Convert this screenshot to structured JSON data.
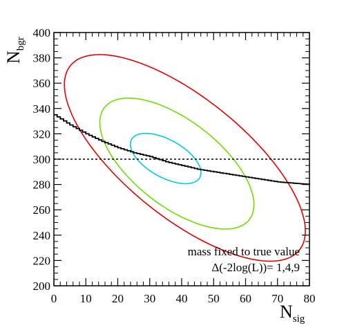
{
  "chart_data": {
    "type": "line",
    "xlabel": {
      "main": "N",
      "sub": "sig"
    },
    "ylabel": {
      "main": "N",
      "sub": "bgr"
    },
    "xlim": [
      0,
      80
    ],
    "ylim": [
      200,
      400
    ],
    "x_ticks": [
      0,
      10,
      20,
      30,
      40,
      50,
      60,
      70,
      80
    ],
    "y_ticks": [
      200,
      220,
      240,
      260,
      280,
      300,
      320,
      340,
      360,
      380,
      400
    ],
    "x_tick_labels": [
      "0",
      "10",
      "20",
      "30",
      "40",
      "50",
      "60",
      "70",
      "80"
    ],
    "y_tick_labels": [
      "200",
      "220",
      "240",
      "260",
      "280",
      "300",
      "320",
      "340",
      "360",
      "380",
      "400"
    ],
    "annotations": [
      "mass fixed to true value",
      "Δ(-2log(L))= 1,4,9"
    ],
    "reference_line": {
      "y": 300,
      "style": "dotted",
      "color": "#000000"
    },
    "series": [
      {
        "type": "step",
        "color": "#000000",
        "x": [
          0,
          5,
          10,
          15,
          20,
          25,
          30,
          35,
          40,
          45,
          50,
          55,
          60,
          65,
          70,
          75,
          80
        ],
        "y": [
          335,
          327,
          320,
          314,
          309,
          305,
          302,
          298,
          295,
          292,
          290,
          288,
          286,
          284,
          282,
          281,
          280
        ]
      }
    ],
    "contours": [
      {
        "level": 1,
        "color": "#00c8e8",
        "center": [
          35.0,
          300.5
        ],
        "semi_major": 11.4,
        "semi_minor": 3.4,
        "angle": -15
      },
      {
        "level": 4,
        "color": "#6fdc00",
        "center": [
          38.5,
          296.5
        ],
        "semi_major": 25.5,
        "semi_minor": 8.2,
        "angle": -20
      },
      {
        "level": 9,
        "color": "#e00000",
        "center": [
          41.0,
          301.0
        ],
        "semi_major": 40.4,
        "semi_minor": 11.6,
        "angle": -22
      }
    ]
  }
}
